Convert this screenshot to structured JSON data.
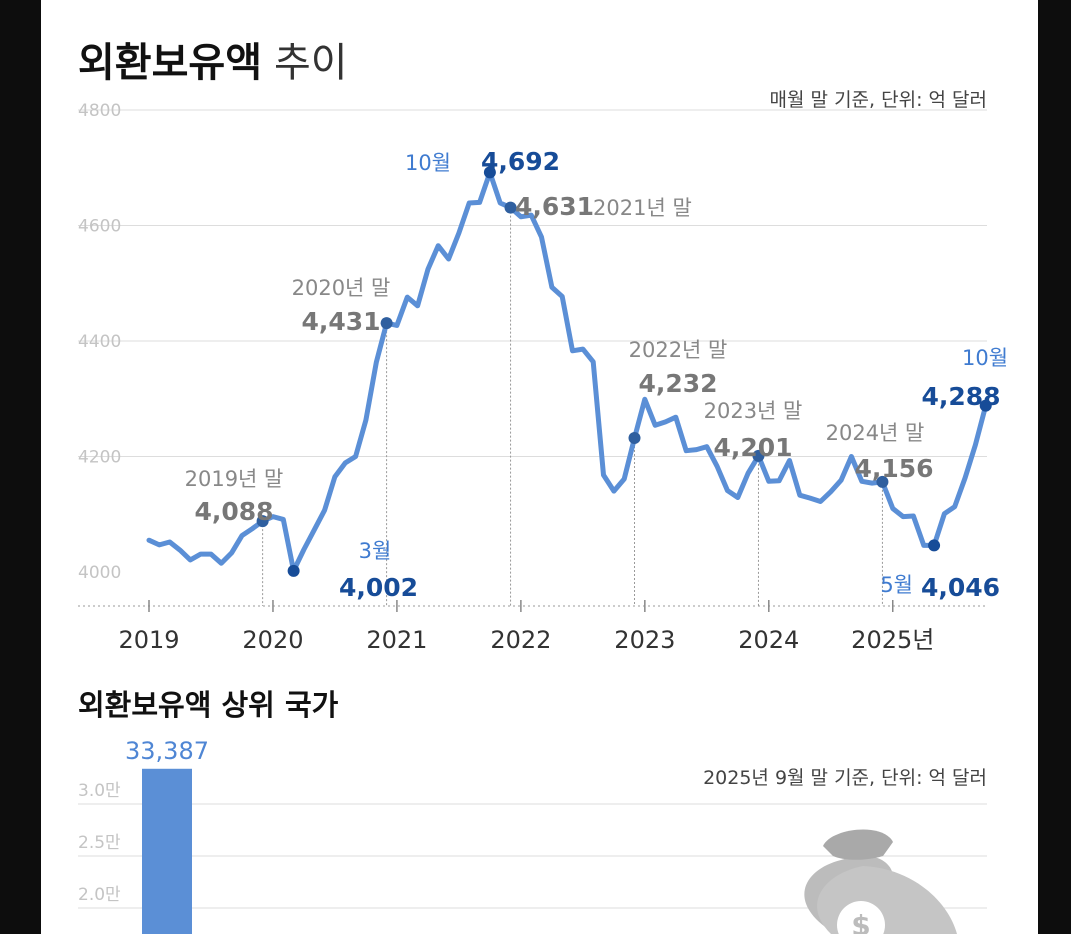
{
  "title": {
    "main": "외환보유액",
    "sub": "추이"
  },
  "chart_data": [
    {
      "type": "line",
      "note": "매월 말 기준, 단위: 억 달러",
      "x_ticks": [
        "2019",
        "2020",
        "2021",
        "2022",
        "2023",
        "2024",
        "2025년"
      ],
      "y_ticks": [
        "4000",
        "4200",
        "4400",
        "4600",
        "4800"
      ],
      "ylim": [
        4000,
        4800
      ],
      "grid": true,
      "color": "#5b8fd6",
      "x": [
        "2019-01",
        "2019-02",
        "2019-03",
        "2019-04",
        "2019-05",
        "2019-06",
        "2019-07",
        "2019-08",
        "2019-09",
        "2019-10",
        "2019-11",
        "2019-12",
        "2020-01",
        "2020-02",
        "2020-03",
        "2020-04",
        "2020-05",
        "2020-06",
        "2020-07",
        "2020-08",
        "2020-09",
        "2020-10",
        "2020-11",
        "2020-12",
        "2021-01",
        "2021-02",
        "2021-03",
        "2021-04",
        "2021-05",
        "2021-06",
        "2021-07",
        "2021-08",
        "2021-09",
        "2021-10",
        "2021-11",
        "2021-12",
        "2022-01",
        "2022-02",
        "2022-03",
        "2022-04",
        "2022-05",
        "2022-06",
        "2022-07",
        "2022-08",
        "2022-09",
        "2022-10",
        "2022-11",
        "2022-12",
        "2023-01",
        "2023-02",
        "2023-03",
        "2023-04",
        "2023-05",
        "2023-06",
        "2023-07",
        "2023-08",
        "2023-09",
        "2023-10",
        "2023-11",
        "2023-12",
        "2024-01",
        "2024-02",
        "2024-03",
        "2024-04",
        "2024-05",
        "2024-06",
        "2024-07",
        "2024-08",
        "2024-09",
        "2024-10",
        "2024-11",
        "2024-12",
        "2025-01",
        "2025-02",
        "2025-03",
        "2025-04",
        "2025-05",
        "2025-06",
        "2025-07",
        "2025-08",
        "2025-09",
        "2025-10"
      ],
      "values": [
        4055,
        4047,
        4052,
        4038,
        4021,
        4031,
        4031,
        4015,
        4033,
        4063,
        4075,
        4088,
        4096,
        4091,
        4002,
        4039,
        4073,
        4107,
        4165,
        4189,
        4200,
        4263,
        4363,
        4431,
        4427,
        4476,
        4461,
        4524,
        4565,
        4542,
        4587,
        4639,
        4640,
        4692,
        4639,
        4631,
        4615,
        4618,
        4580,
        4493,
        4477,
        4383,
        4386,
        4364,
        4168,
        4140,
        4161,
        4232,
        4299,
        4254,
        4260,
        4268,
        4210,
        4212,
        4217,
        4183,
        4141,
        4129,
        4171,
        4201,
        4157,
        4158,
        4193,
        4133,
        4128,
        4122,
        4139,
        4159,
        4200,
        4157,
        4154,
        4156,
        4110,
        4096,
        4097,
        4046,
        4046,
        4101,
        4113,
        4163,
        4220,
        4288
      ],
      "annotations": [
        {
          "month": "2019-12",
          "value": 4088,
          "value_label": "4,088",
          "caption": "2019년 말",
          "style": "gray"
        },
        {
          "month": "2020-03",
          "value": 4002,
          "value_label": "4,002",
          "caption": "3월",
          "style": "blue"
        },
        {
          "month": "2020-12",
          "value": 4431,
          "value_label": "4,431",
          "caption": "2020년 말",
          "style": "gray"
        },
        {
          "month": "2021-10",
          "value": 4692,
          "value_label": "4,692",
          "caption": "10월",
          "style": "blue"
        },
        {
          "month": "2021-12",
          "value": 4631,
          "value_label": "4,631",
          "caption": "2021년 말",
          "style": "gray"
        },
        {
          "month": "2022-12",
          "value": 4232,
          "value_label": "4,232",
          "caption": "2022년 말",
          "style": "gray"
        },
        {
          "month": "2023-12",
          "value": 4201,
          "value_label": "4,201",
          "caption": "2023년 말",
          "style": "gray"
        },
        {
          "month": "2024-12",
          "value": 4156,
          "value_label": "4,156",
          "caption": "2024년 말",
          "style": "gray"
        },
        {
          "month": "2025-05",
          "value": 4046,
          "value_label": "4,046",
          "caption": "5월",
          "style": "blue"
        },
        {
          "month": "2025-10",
          "value": 4288,
          "value_label": "4,288",
          "caption": "10월",
          "style": "blue"
        }
      ]
    },
    {
      "type": "bar",
      "title": "외환보유액 상위 국가",
      "note": "2025년 9월 말 기준, 단위: 억 달러",
      "y_ticks": [
        "2.0만",
        "2.5만",
        "3.0만"
      ],
      "y_tick_values": [
        20000,
        25000,
        30000
      ],
      "values": [
        33387
      ],
      "value_labels": [
        "33,387"
      ],
      "color": "#5b8fd6"
    }
  ],
  "decorations": {
    "money_bag_icon": "money-bag-icon"
  }
}
